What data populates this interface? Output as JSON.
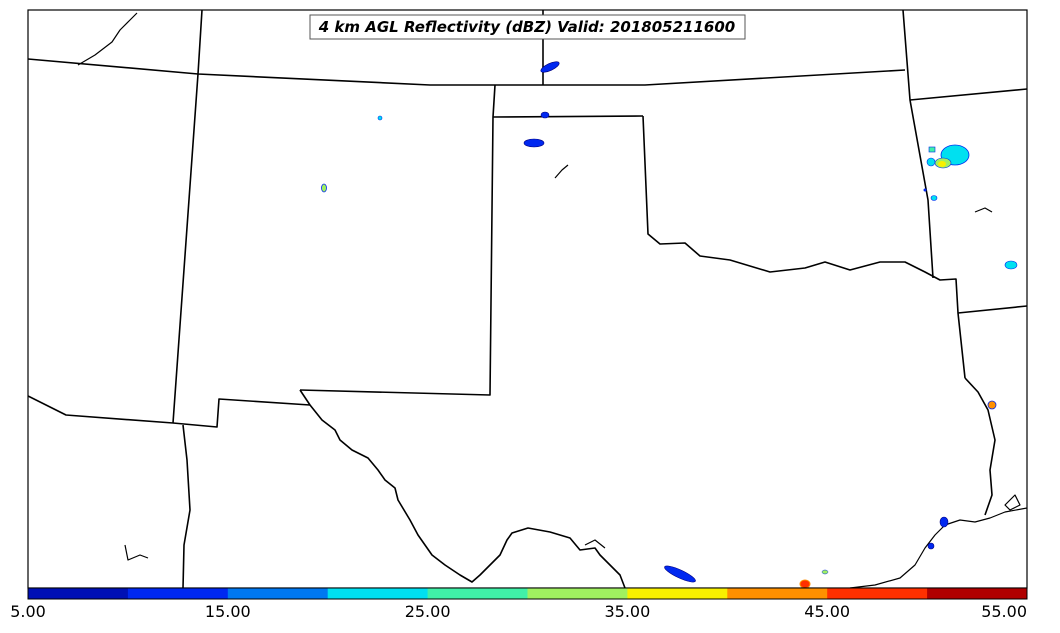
{
  "title": "4 km AGL Reflectivity (dBZ) Valid: 201805211600",
  "colorbar": {
    "colors": [
      "#0010b5",
      "#0028f0",
      "#0078f0",
      "#00e0f0",
      "#40f0a8",
      "#a0f060",
      "#f8f000",
      "#ff9000",
      "#ff3000",
      "#b00000"
    ],
    "tick_labels": [
      "5.00",
      "15.00",
      "25.00",
      "35.00",
      "45.00",
      "55.00"
    ],
    "range": [
      5,
      55
    ]
  }
}
